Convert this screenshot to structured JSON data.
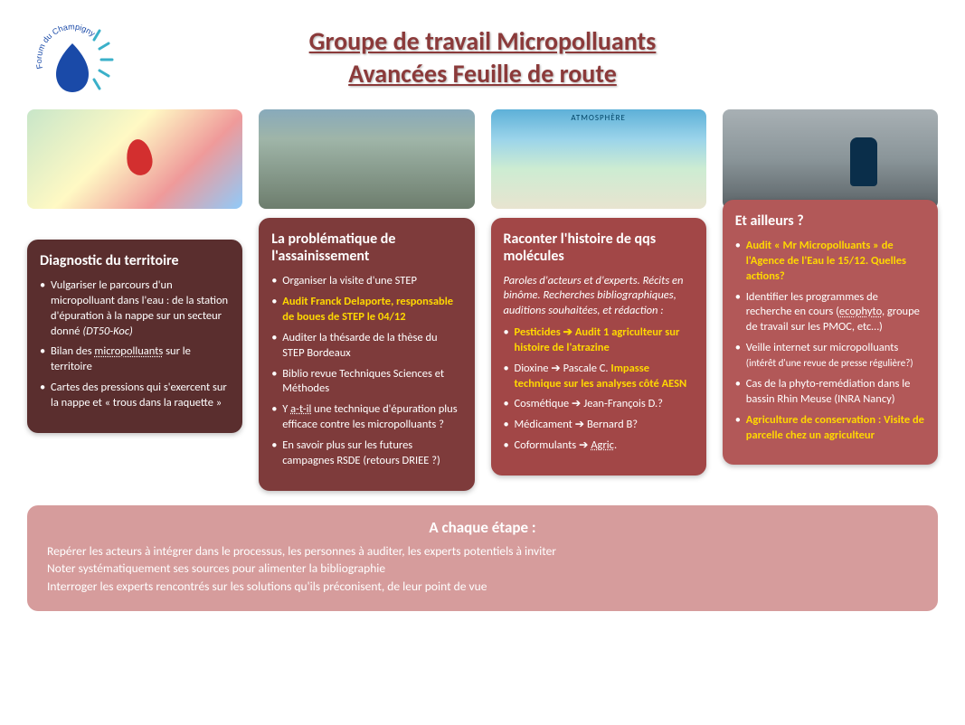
{
  "logo_text": "Forum du Champigny",
  "title_line1": "Groupe de travail Micropolluants",
  "title_line2": "Avancées Feuille de route",
  "colors": {
    "title": "#8b3a3a",
    "highlight": "#ffd800",
    "card1_bg": "#5a2e2e",
    "card2_bg": "#7e3b3b",
    "card3_bg": "#a24747",
    "card4_bg": "#b25858",
    "footer_bg": "#d69c9c",
    "text": "#ffffff"
  },
  "cards": [
    {
      "title": "Diagnostic du territoire",
      "items": [
        {
          "html": "Vulgariser le parcours d'un micropolluant dans l'eau : de la station d'épuration à la nappe sur un secteur donné <i>(DT50-Koc)</i>"
        },
        {
          "html": "Bilan des <span class='u'>micropolluants</span> sur le territoire"
        },
        {
          "html": "Cartes des pressions qui s'exercent sur la nappe et « trous dans la raquette »"
        }
      ]
    },
    {
      "title": "La problématique de l'assainissement",
      "items": [
        {
          "html": "Organiser la visite d'une STEP"
        },
        {
          "html": "<span class='hl'>Audit Franck Delaporte, responsable de boues de STEP le 04/12</span>"
        },
        {
          "html": "Auditer la thésarde de la thèse du STEP Bordeaux"
        },
        {
          "html": "Biblio revue Techniques Sciences et Méthodes"
        },
        {
          "html": "Y <span class='u'>a-t-il</span> une technique d'épuration plus efficace contre les micropolluants ?"
        },
        {
          "html": "En savoir plus sur les futures campagnes RSDE (retours DRIEE ?)"
        }
      ]
    },
    {
      "title": "Raconter l'histoire de qqs molécules",
      "intro": "Paroles d'acteurs et d'experts. Récits en binôme. Recherches bibliographiques, auditions souhaitées, et rédaction :",
      "items": [
        {
          "html": "<span class='hl'>Pesticides ➔ Audit 1 agriculteur sur histoire de l'atrazine</span>"
        },
        {
          "html": "Dioxine ➔ Pascale C. <span class='hl'>Impasse technique sur les analyses côté AESN</span>"
        },
        {
          "html": "Cosmétique ➔ Jean-François D.?"
        },
        {
          "html": "Médicament ➔ Bernard B?"
        },
        {
          "html": "Coformulants ➔ <span class='u'>Agric</span>."
        }
      ]
    },
    {
      "title": "Et ailleurs ?",
      "items": [
        {
          "html": "<span class='hl'>Audit « Mr Micropolluants » de l'Agence de l'Eau le 15/12. Quelles actions?</span>"
        },
        {
          "html": "Identifier les programmes de recherche en cours (<span class='u'>ecophyto</span>, groupe de travail sur les PMOC, etc…)"
        },
        {
          "html": "Veille internet sur micropolluants <span style='font-size:11px'>(intérêt d'une revue de presse régulière?)</span>"
        },
        {
          "html": "Cas de la phyto-remédiation dans le bassin Rhin Meuse (INRA Nancy)"
        },
        {
          "html": "<span class='hl'>Agriculture de conservation : Visite de parcelle chez un agriculteur</span>"
        }
      ]
    }
  ],
  "footer": {
    "title": "A chaque étape :",
    "lines": [
      "Repérer les acteurs à intégrer dans le processus, les personnes à auditer, les experts potentiels à inviter",
      "Noter systématiquement ses sources pour alimenter la bibliographie",
      "Interroger les experts rencontrés sur les solutions qu'ils préconisent, de leur point de vue"
    ]
  },
  "card_offsets": [
    64,
    40,
    40,
    20
  ]
}
